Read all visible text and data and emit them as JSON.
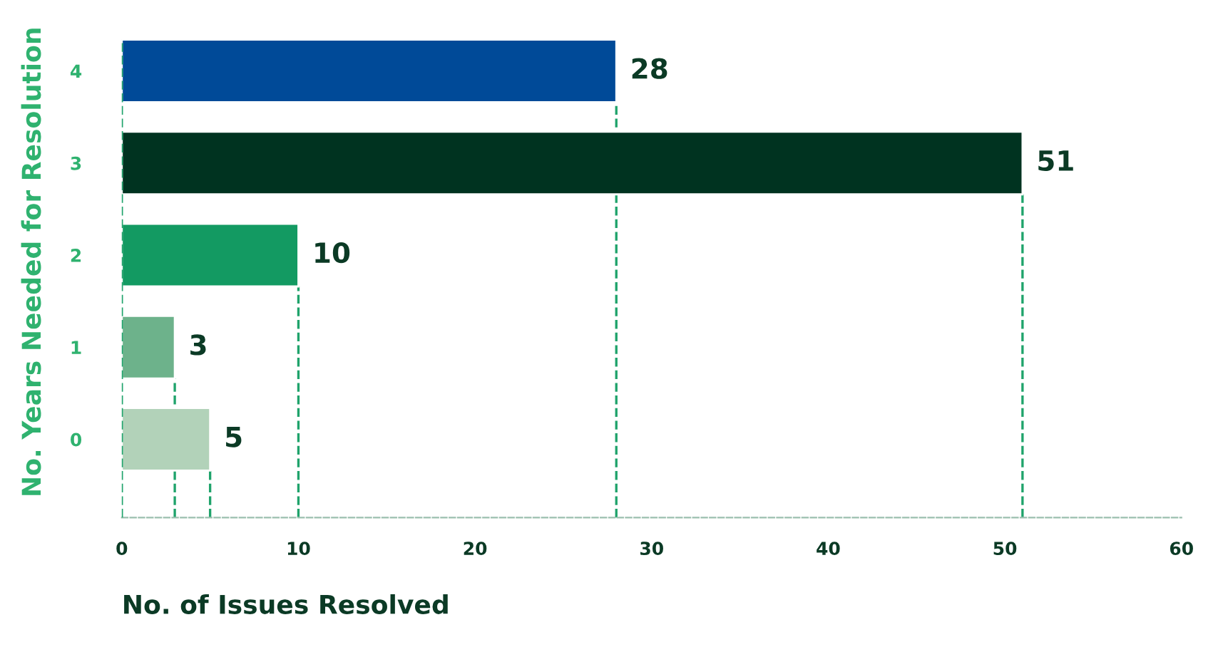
{
  "chart_data": {
    "type": "bar",
    "orientation": "horizontal",
    "xlabel": "No. of Issues Resolved",
    "ylabel": "No. Years Needed for Resolution",
    "categories": [
      "4",
      "3",
      "2",
      "1",
      "0"
    ],
    "values": [
      28,
      51,
      10,
      3,
      5
    ],
    "colors": [
      "#004a98",
      "#003320",
      "#139a62",
      "#6db28b",
      "#b2d2b9"
    ],
    "data_labels": true,
    "xlim": [
      0,
      60
    ],
    "xticks": [
      0,
      10,
      20,
      30,
      40,
      50,
      60
    ],
    "grid": false,
    "legend": false,
    "ref_lines": [
      {
        "axis": "x",
        "value": 28,
        "color": "#1fa36b",
        "line_style": "dashed"
      },
      {
        "axis": "x",
        "value": 51,
        "color": "#1fa36b",
        "line_style": "dashed"
      },
      {
        "axis": "x",
        "value": 10,
        "color": "#1fa36b",
        "line_style": "dashed"
      },
      {
        "axis": "x",
        "value": 3,
        "color": "#1fa36b",
        "line_style": "dashed"
      },
      {
        "axis": "x",
        "value": 5,
        "color": "#1fa36b",
        "line_style": "dashed"
      },
      {
        "axis": "x",
        "value": 0,
        "color": "#1fa36b",
        "line_style": "dashed"
      }
    ]
  }
}
